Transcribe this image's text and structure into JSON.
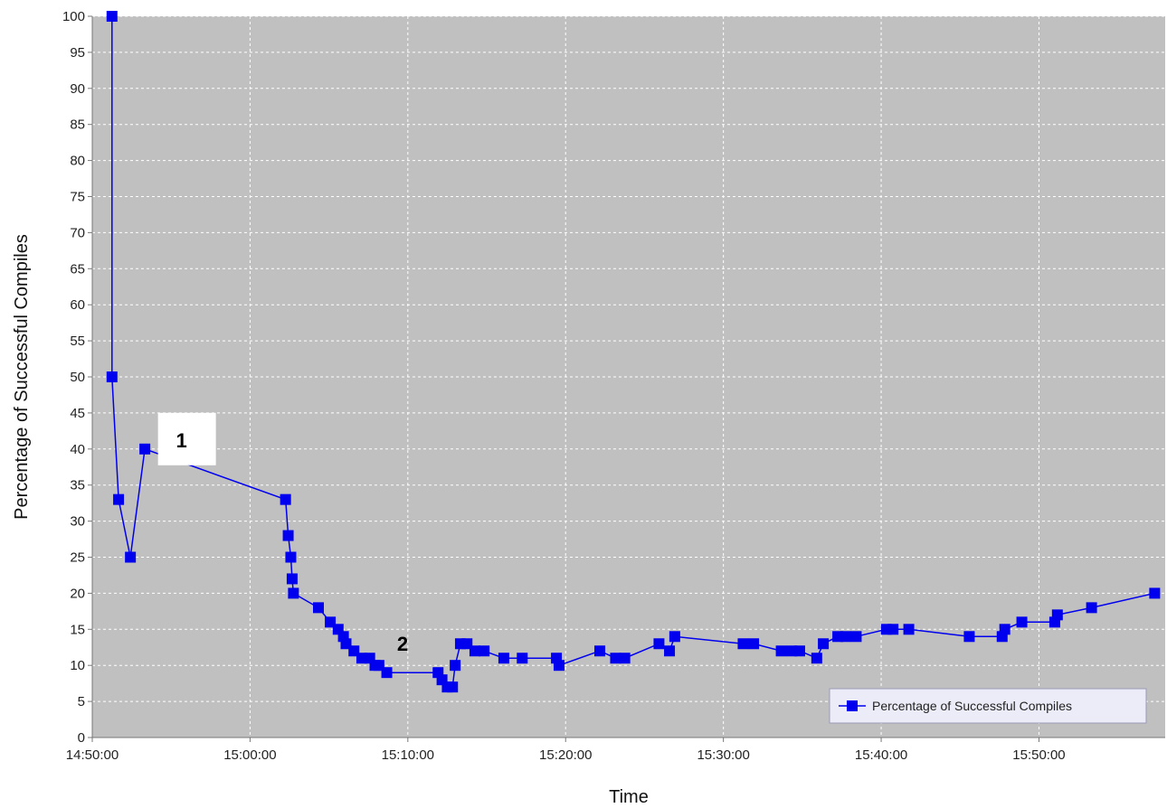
{
  "chart_data": {
    "type": "line",
    "xlabel": "Time",
    "ylabel": "Percentage of Successful Compiles",
    "ylim": [
      0,
      100
    ],
    "xlim": [
      "14:50:00",
      "15:58:00"
    ],
    "y_ticks": [
      0,
      5,
      10,
      15,
      20,
      25,
      30,
      35,
      40,
      45,
      50,
      55,
      60,
      65,
      70,
      75,
      80,
      85,
      90,
      95,
      100
    ],
    "y_tick_labels": [
      "0",
      "5",
      "10",
      "15",
      "20",
      "25",
      "30",
      "35",
      "40",
      "45",
      "50",
      "55",
      "60",
      "65",
      "70",
      "75",
      "80",
      "85",
      "90",
      "95",
      "100"
    ],
    "x_ticks": [
      "14:50:00",
      "15:00:00",
      "15:10:00",
      "15:20:00",
      "15:30:00",
      "15:40:00",
      "15:50:00"
    ],
    "grid": true,
    "legend_position": "bottom-right",
    "background_color": "#c0c0c0",
    "grid_color": "#ffffff",
    "series": [
      {
        "name": "Percentage of Successful Compiles",
        "color": "#0000ee",
        "marker": "square",
        "x": [
          "14:51:15",
          "14:51:15",
          "14:51:40",
          "14:52:25",
          "14:53:20",
          "15:02:15",
          "15:02:25",
          "15:02:35",
          "15:02:40",
          "15:02:45",
          "15:04:20",
          "15:05:05",
          "15:05:35",
          "15:05:55",
          "15:06:05",
          "15:06:35",
          "15:07:05",
          "15:07:35",
          "15:07:55",
          "15:08:10",
          "15:08:40",
          "15:11:55",
          "15:12:10",
          "15:12:30",
          "15:12:50",
          "15:13:00",
          "15:13:20",
          "15:13:45",
          "15:14:15",
          "15:14:50",
          "15:16:05",
          "15:17:15",
          "15:19:25",
          "15:19:35",
          "15:22:10",
          "15:23:10",
          "15:23:45",
          "15:25:55",
          "15:26:35",
          "15:26:55",
          "15:31:15",
          "15:31:55",
          "15:33:40",
          "15:34:20",
          "15:34:50",
          "15:35:55",
          "15:36:20",
          "15:37:15",
          "15:37:45",
          "15:38:25",
          "15:40:20",
          "15:40:45",
          "15:41:45",
          "15:45:35",
          "15:47:40",
          "15:47:50",
          "15:48:55",
          "15:51:00",
          "15:51:10",
          "15:53:20",
          "15:57:20"
        ],
        "y": [
          100,
          50,
          33,
          25,
          40,
          33,
          28,
          25,
          22,
          20,
          18,
          16,
          15,
          14,
          13,
          12,
          11,
          11,
          10,
          10,
          9,
          9,
          8,
          7,
          7,
          10,
          13,
          13,
          12,
          12,
          11,
          11,
          11,
          10,
          12,
          11,
          11,
          13,
          12,
          14,
          13,
          13,
          12,
          12,
          12,
          11,
          13,
          14,
          14,
          14,
          15,
          15,
          15,
          14,
          14,
          15,
          16,
          16,
          17,
          18,
          20
        ]
      }
    ],
    "annotations": [
      {
        "label": "1",
        "box": true,
        "x": "14:56:00",
        "y": 40
      },
      {
        "label": "2",
        "box": false,
        "x": "15:09:40",
        "y": 12
      }
    ]
  }
}
